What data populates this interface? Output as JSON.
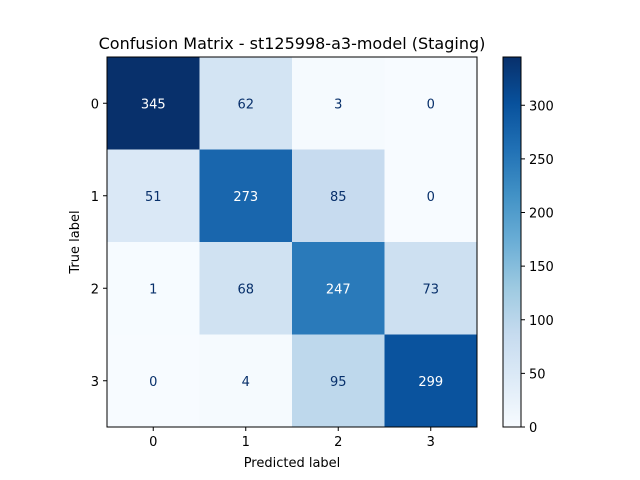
{
  "chart_data": {
    "type": "heatmap",
    "title": "Confusion Matrix - st125998-a3-model (Staging)",
    "xlabel": "Predicted label",
    "ylabel": "True label",
    "x_categories": [
      "0",
      "1",
      "2",
      "3"
    ],
    "y_categories": [
      "0",
      "1",
      "2",
      "3"
    ],
    "values": [
      [
        345,
        62,
        3,
        0
      ],
      [
        51,
        273,
        85,
        0
      ],
      [
        1,
        68,
        247,
        73
      ],
      [
        0,
        4,
        95,
        299
      ]
    ],
    "colormap": "Blues",
    "colorbar": {
      "min": 0,
      "max": 345,
      "ticks": [
        "0",
        "50",
        "100",
        "150",
        "200",
        "250",
        "300"
      ]
    }
  }
}
